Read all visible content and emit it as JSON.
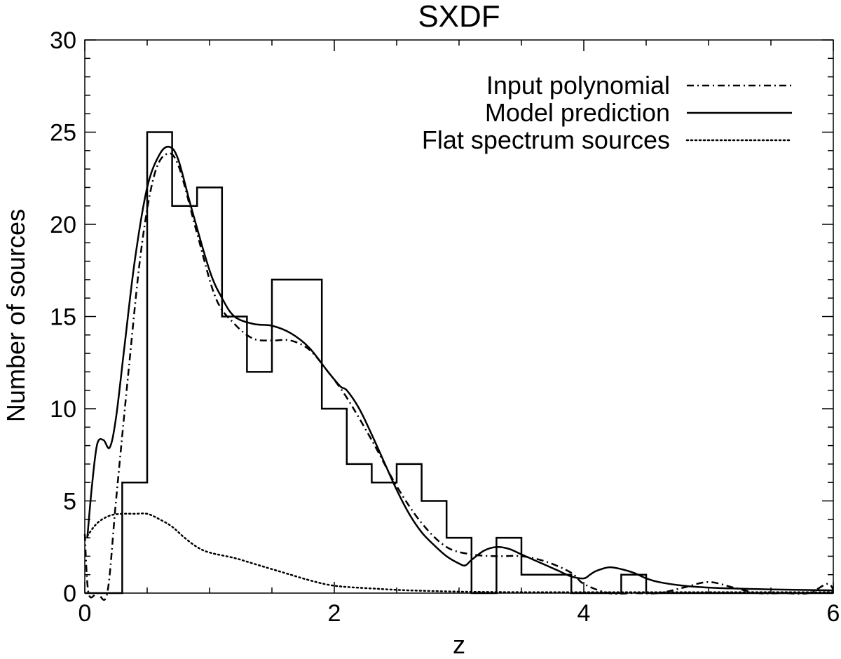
{
  "chart_data": {
    "type": "line",
    "title": "SXDF",
    "xlabel": "z",
    "ylabel": "Number of sources",
    "xlim": [
      0,
      6
    ],
    "ylim": [
      0,
      30
    ],
    "x_ticks": [
      0,
      2,
      4,
      6
    ],
    "y_ticks": [
      0,
      5,
      10,
      15,
      20,
      25,
      30
    ],
    "grid": false,
    "legend_position": "top-right",
    "histogram": {
      "bin_edges": [
        0.0,
        0.3,
        0.5,
        0.7,
        0.9,
        1.1,
        1.3,
        1.5,
        1.9,
        2.1,
        2.3,
        2.5,
        2.7,
        2.9,
        3.1,
        3.3,
        3.5,
        3.9,
        4.3,
        4.5,
        6.0
      ],
      "counts": [
        0,
        6,
        25,
        21,
        22,
        15,
        12,
        17,
        10,
        7,
        6,
        7,
        5,
        3,
        0,
        3,
        1,
        0,
        1,
        0
      ]
    },
    "series": [
      {
        "name": "Input polynomial",
        "style": "dash-dot",
        "x": [
          0.0,
          0.03,
          0.1,
          0.18,
          0.25,
          0.35,
          0.45,
          0.55,
          0.65,
          0.75,
          0.9,
          1.05,
          1.2,
          1.35,
          1.5,
          1.65,
          1.8,
          1.95,
          2.1,
          2.3,
          2.5,
          2.7,
          2.9,
          3.1,
          3.3,
          3.5,
          3.7,
          3.9,
          4.0,
          4.2,
          4.4,
          4.6,
          4.8,
          5.0,
          5.2,
          5.4,
          5.6,
          5.8,
          5.95,
          6.0
        ],
        "y": [
          3.2,
          0,
          0,
          0,
          5.0,
          12.0,
          18.5,
          22.5,
          23.8,
          23.2,
          19.5,
          16.0,
          14.6,
          13.8,
          13.7,
          13.7,
          13.2,
          12.0,
          10.6,
          8.3,
          5.8,
          3.8,
          2.5,
          2.1,
          2.0,
          2.0,
          1.7,
          1.1,
          0.5,
          0,
          0,
          0,
          0.3,
          0.6,
          0.3,
          0,
          0,
          0,
          0.5,
          0.2
        ]
      },
      {
        "name": "Model prediction",
        "style": "solid",
        "x": [
          0.02,
          0.06,
          0.1,
          0.15,
          0.2,
          0.25,
          0.32,
          0.4,
          0.5,
          0.6,
          0.68,
          0.75,
          0.85,
          1.0,
          1.1,
          1.2,
          1.35,
          1.5,
          1.65,
          1.8,
          1.95,
          2.05,
          2.1,
          2.2,
          2.3,
          2.4,
          2.5,
          2.6,
          2.7,
          2.8,
          2.9,
          3.0,
          3.05,
          3.1,
          3.2,
          3.3,
          3.4,
          3.5,
          3.6,
          3.7,
          3.8,
          3.9,
          4.0,
          4.05,
          4.1,
          4.2,
          4.3,
          4.4,
          4.5,
          4.6,
          4.8,
          5.0,
          5.2,
          5.5,
          6.0
        ],
        "y": [
          3.0,
          6.0,
          8.1,
          8.3,
          7.9,
          9.5,
          13.5,
          18.0,
          22.0,
          23.8,
          24.2,
          23.5,
          21.0,
          17.5,
          16.0,
          15.0,
          14.6,
          14.5,
          14.1,
          13.3,
          12.0,
          11.2,
          11.0,
          10.0,
          8.6,
          7.1,
          5.6,
          4.3,
          3.3,
          2.6,
          2.0,
          1.6,
          1.5,
          1.8,
          2.3,
          2.5,
          2.4,
          2.1,
          1.8,
          1.5,
          1.2,
          0.9,
          0.8,
          1.0,
          1.2,
          1.4,
          1.3,
          1.1,
          0.8,
          0.6,
          0.4,
          0.3,
          0.25,
          0.2,
          0.15
        ]
      },
      {
        "name": "Flat spectrum sources",
        "style": "dotted",
        "x": [
          0.02,
          0.1,
          0.2,
          0.3,
          0.4,
          0.5,
          0.6,
          0.7,
          0.8,
          0.9,
          1.0,
          1.2,
          1.4,
          1.6,
          1.8,
          2.0,
          2.3,
          2.6,
          3.0,
          3.5,
          4.0,
          4.5,
          5.0,
          5.5,
          6.0
        ],
        "y": [
          3.1,
          3.8,
          4.2,
          4.3,
          4.3,
          4.3,
          4.0,
          3.6,
          3.0,
          2.5,
          2.2,
          1.9,
          1.5,
          1.1,
          0.7,
          0.4,
          0.25,
          0.15,
          0.08,
          0.05,
          0.05,
          0.05,
          0.05,
          0.05,
          0.05
        ]
      }
    ]
  }
}
